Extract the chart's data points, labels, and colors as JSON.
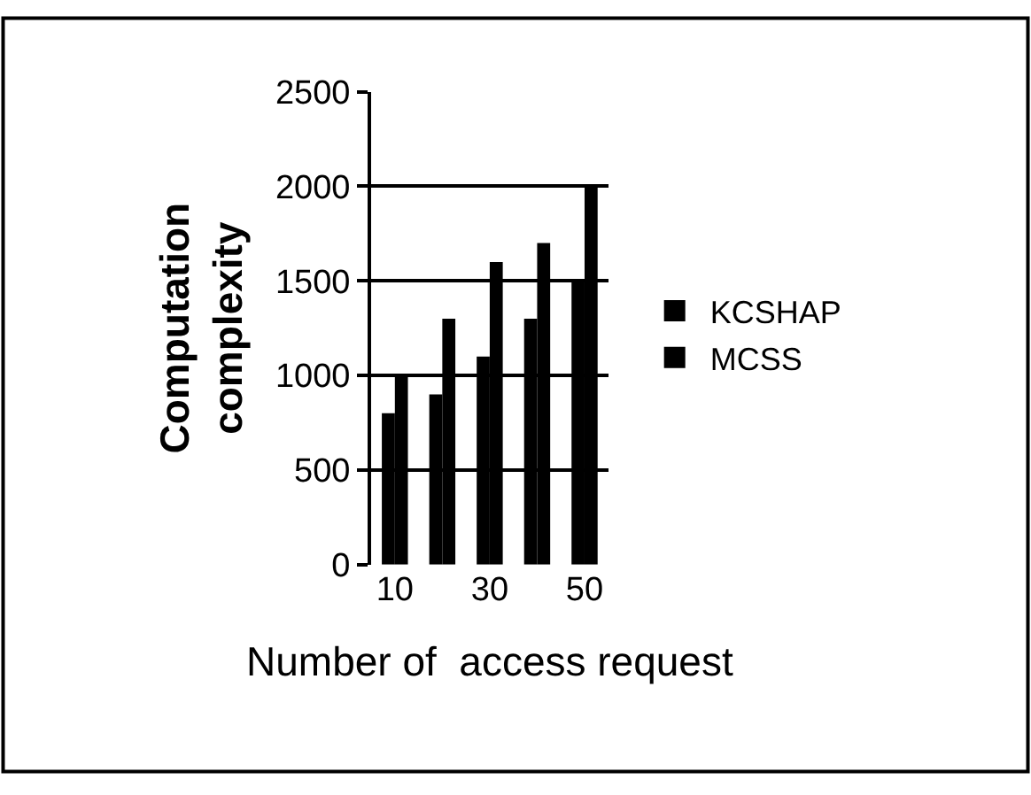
{
  "chart_data": {
    "type": "bar",
    "xlabel": "Number of  access request",
    "ylabel": "Computation complexity",
    "categories": [
      "10",
      null,
      "30",
      null,
      "50"
    ],
    "series": [
      {
        "name": "KCSHAP",
        "color": "#000000",
        "values": [
          800,
          900,
          1100,
          1300,
          1500
        ]
      },
      {
        "name": "MCSS",
        "color": "#000000",
        "values": [
          1000,
          1300,
          1600,
          1700,
          2000
        ]
      }
    ],
    "ylim": [
      0,
      2500
    ],
    "yticks": [
      0,
      500,
      1000,
      1500,
      2000,
      2500
    ],
    "grid": "y",
    "legend": "right"
  }
}
